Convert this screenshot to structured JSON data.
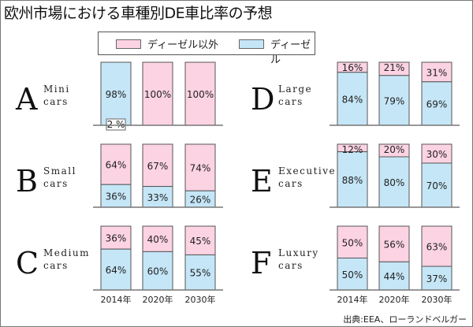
{
  "title": "欧州市場における車種別DE車比率の予想",
  "legend": [
    {
      "label": "ディーゼル以外",
      "color": "#fcd3e3"
    },
    {
      "label": "ディーゼル",
      "color": "#c5e6f7"
    }
  ],
  "source": "出典:EEA、ローランドベルガー",
  "chart_data": {
    "type": "bar",
    "stacked": true,
    "categories": [
      "2014年",
      "2020年",
      "2030年"
    ],
    "ylim": [
      0,
      100
    ],
    "colors": {
      "diesel": "#c5e6f7",
      "non_diesel": "#fcd3e3"
    },
    "panels": [
      {
        "letter": "A",
        "name_line1": "Mini",
        "name_line2": "cars",
        "diesel": [
          98,
          0,
          0
        ],
        "non_diesel": [
          2,
          100,
          100
        ],
        "diesel_labels": [
          "98%",
          "",
          ""
        ],
        "non_diesel_labels": [
          "2 %",
          "100%",
          "100%"
        ]
      },
      {
        "letter": "B",
        "name_line1": "Small",
        "name_line2": "cars",
        "diesel": [
          36,
          33,
          26
        ],
        "non_diesel": [
          64,
          67,
          74
        ],
        "diesel_labels": [
          "36%",
          "33%",
          "26%"
        ],
        "non_diesel_labels": [
          "64%",
          "67%",
          "74%"
        ]
      },
      {
        "letter": "C",
        "name_line1": "Medium",
        "name_line2": "cars",
        "diesel": [
          64,
          60,
          55
        ],
        "non_diesel": [
          36,
          40,
          45
        ],
        "diesel_labels": [
          "64%",
          "60%",
          "55%"
        ],
        "non_diesel_labels": [
          "36%",
          "40%",
          "45%"
        ]
      },
      {
        "letter": "D",
        "name_line1": "Large",
        "name_line2": "cars",
        "diesel": [
          84,
          79,
          69
        ],
        "non_diesel": [
          16,
          21,
          31
        ],
        "diesel_labels": [
          "84%",
          "79%",
          "69%"
        ],
        "non_diesel_labels": [
          "16%",
          "21%",
          "31%"
        ]
      },
      {
        "letter": "E",
        "name_line1": "Executive",
        "name_line2": "cars",
        "diesel": [
          88,
          80,
          70
        ],
        "non_diesel": [
          12,
          20,
          30
        ],
        "diesel_labels": [
          "88%",
          "80%",
          "70%"
        ],
        "non_diesel_labels": [
          "12%",
          "20%",
          "30%"
        ]
      },
      {
        "letter": "F",
        "name_line1": "Luxury",
        "name_line2": "cars",
        "diesel": [
          50,
          44,
          37
        ],
        "non_diesel": [
          50,
          56,
          63
        ],
        "diesel_labels": [
          "50%",
          "44%",
          "37%"
        ],
        "non_diesel_labels": [
          "50%",
          "56%",
          "63%"
        ]
      }
    ]
  }
}
